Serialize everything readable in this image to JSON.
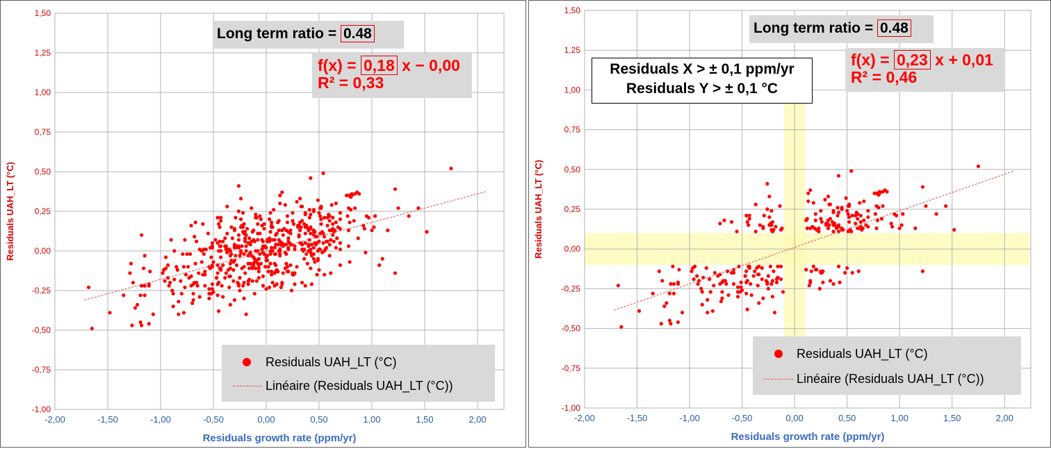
{
  "colors": {
    "points": "#ff0000",
    "trend": "#e34b4b",
    "threshold_band": "#fff9b0",
    "label_bg": "#d9d9d9"
  },
  "chart_data": [
    {
      "type": "scatter",
      "xlabel": "Residuals growth rate (ppm/yr)",
      "ylabel": "Residuals UAH_LT (°C)",
      "xlim": [
        -2.0,
        2.25
      ],
      "ylim": [
        -1.0,
        1.5
      ],
      "xticks": [
        "-2,00",
        "-1,50",
        "-1,00",
        "-0,50",
        "0,00",
        "0,50",
        "1,00",
        "1,50",
        "2,00"
      ],
      "yticks": [
        "1,50",
        "1,25",
        "1,00",
        "0,75",
        "0,50",
        "0,25",
        "0,00",
        "-0,25",
        "-0,50",
        "-0,75",
        "-1,00"
      ],
      "grid": true,
      "legend_position": "bottom-right",
      "series": [
        {
          "name": "Residuals UAH_LT (°C)",
          "marker": "dot"
        },
        {
          "name": "Linéaire (Residuals UAH_LT (°C))",
          "marker": "dashed-line"
        }
      ],
      "trendline": {
        "slope": 0.18,
        "intercept": 0.0,
        "x_range": [
          -1.72,
          2.08
        ]
      },
      "annotations": {
        "ratio_label": "Long term ratio =",
        "ratio_value": "0.48",
        "fit_prefix": "f(x) =",
        "fit_slope": "0,18",
        "fit_suffix": "x − 0,00",
        "r2": "R² = 0,33"
      },
      "points": []
    },
    {
      "type": "scatter",
      "xlabel": "Residuals growth rate  (ppm/yr)",
      "ylabel": "Residuals UAH_LT (°C)",
      "xlim": [
        -2.0,
        2.25
      ],
      "ylim": [
        -1.0,
        1.5
      ],
      "xticks": [
        "-2,00",
        "-1,50",
        "-1,00",
        "-0,50",
        "0,00",
        "0,50",
        "1,00",
        "1,50",
        "2,00"
      ],
      "yticks": [
        "1,50",
        "1,25",
        "1,00",
        "0,75",
        "0,50",
        "0,25",
        "0,00",
        "-0,25",
        "-0,50",
        "-0,75",
        "-1,00"
      ],
      "grid": true,
      "legend_position": "bottom-right",
      "series": [
        {
          "name": "Residuals UAH_LT (°C)",
          "marker": "dot"
        },
        {
          "name": "Linéaire (Residuals UAH_LT (°C))",
          "marker": "dashed-line"
        }
      ],
      "trendline": {
        "slope": 0.23,
        "intercept": 0.01,
        "x_range": [
          -1.72,
          2.08
        ]
      },
      "threshold_bands": {
        "x": [
          -0.1,
          0.1
        ],
        "y": [
          -0.1,
          0.1
        ]
      },
      "annotations": {
        "ratio_label": "Long term ratio =",
        "ratio_value": "0.48",
        "fit_prefix": "f(x) =",
        "fit_slope": "0,23",
        "fit_suffix": "x + 0,01",
        "r2": "R² = 0,46",
        "threshold_line1": "Residuals X > ± 0,1 ppm/yr",
        "threshold_line2": "Residuals  Y  >  ± 0,1 °C"
      },
      "points": []
    }
  ]
}
